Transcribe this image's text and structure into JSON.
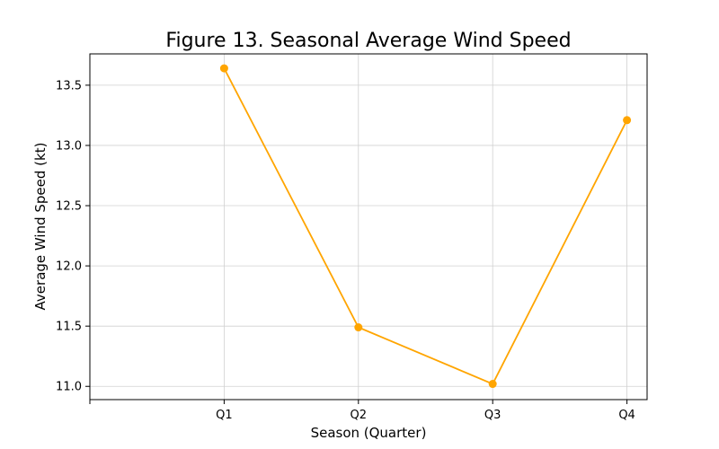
{
  "chart_data": {
    "type": "line",
    "title": "Figure 13. Seasonal Average Wind Speed",
    "xlabel": "Season (Quarter)",
    "ylabel": "Average Wind Speed (kt)",
    "categories": [
      "Q1",
      "Q2",
      "Q3",
      "Q4"
    ],
    "values": [
      13.64,
      11.49,
      11.02,
      13.21
    ],
    "ylim": [
      10.89,
      13.76
    ],
    "yticks": [
      "11.0",
      "11.5",
      "12.0",
      "12.5",
      "13.0",
      "13.5"
    ],
    "grid": true,
    "color": "#FFA500"
  }
}
